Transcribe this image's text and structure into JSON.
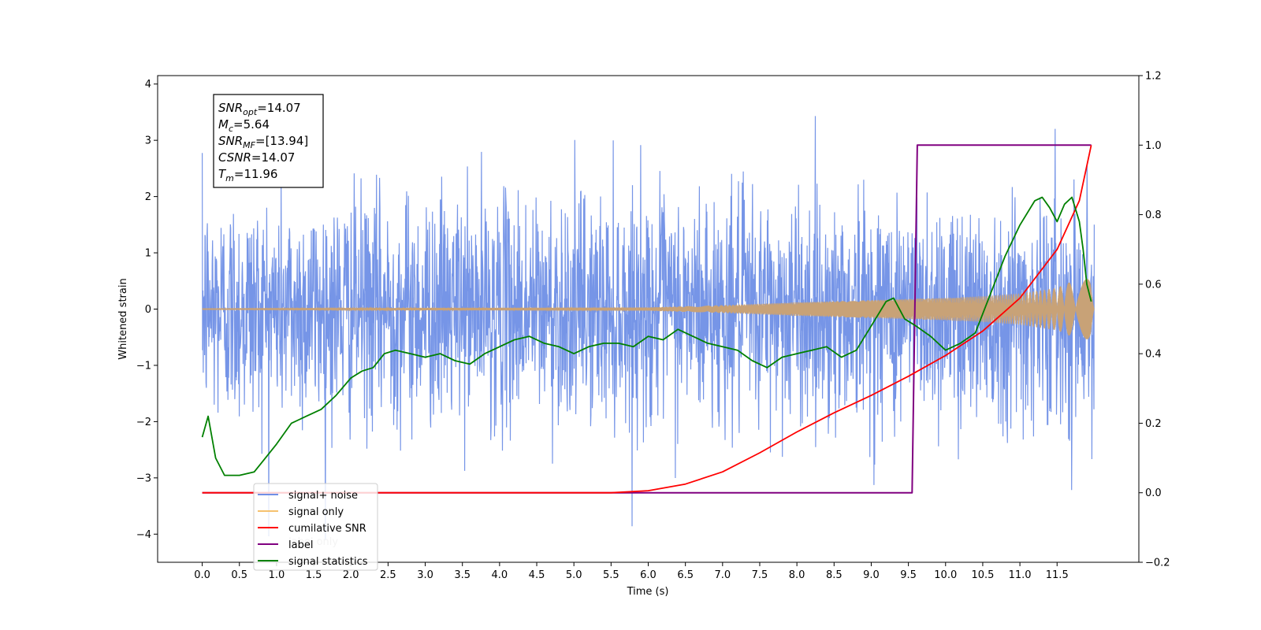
{
  "chart_data": {
    "type": "line",
    "xlabel": "Time (s)",
    "ylabel_left": "Whitened strain",
    "x_range": [
      -0.6,
      12.6
    ],
    "y_left_range": [
      -4.5,
      4.15
    ],
    "y_right_range": [
      -0.2,
      1.2
    ],
    "x_ticks": [
      0.0,
      0.5,
      1.0,
      1.5,
      2.0,
      2.5,
      3.0,
      3.5,
      4.0,
      4.5,
      5.0,
      5.5,
      6.0,
      6.5,
      7.0,
      7.5,
      8.0,
      8.5,
      9.0,
      9.5,
      10.0,
      10.5,
      11.0,
      11.5
    ],
    "x_tick_labels": [
      "0.0",
      "0.5",
      "1.0",
      "1.5",
      "2.0",
      "2.5",
      "3.0",
      "3.5",
      "4.0",
      "4.5",
      "5.0",
      "5.5",
      "6.0",
      "6.5",
      "7.0",
      "7.5",
      "8.0",
      "8.5",
      "9.0",
      "9.5",
      "10.0",
      "10.5",
      "11.0",
      "11.5"
    ],
    "y_left_ticks": [
      4,
      3,
      2,
      1,
      0,
      -1,
      -2,
      -3,
      -4
    ],
    "y_left_tick_labels": [
      "4",
      "3",
      "2",
      "1",
      "0",
      "−1",
      "−2",
      "−3",
      "−4"
    ],
    "y_right_ticks": [
      1.2,
      1.0,
      0.8,
      0.6,
      0.4,
      0.2,
      0.0,
      -0.2
    ],
    "y_right_tick_labels": [
      "1.2",
      "1.0",
      "0.8",
      "0.6",
      "0.4",
      "0.2",
      "0.0",
      "−0.2"
    ],
    "annotation": [
      {
        "name": "SNR",
        "sub": "opt",
        "value": "=14.07"
      },
      {
        "name": "M",
        "sub": "c",
        "value": "=5.64"
      },
      {
        "name": "SNR",
        "sub": "MF",
        "value": "=[13.94]"
      },
      {
        "name": "CSNR",
        "sub": "",
        "value": "=14.07"
      },
      {
        "name": "T",
        "sub": "m",
        "value": "=11.96"
      }
    ],
    "legend": {
      "placement": "lower-left",
      "entries": [
        {
          "label": "signal+ noise",
          "color": "#6f8fe6"
        },
        {
          "label": "signal only",
          "color": "#f5c16e"
        },
        {
          "label": "cumilative SNR",
          "color": "#ff0000"
        },
        {
          "label": "label",
          "color": "#800080"
        },
        {
          "label": "signal statistics",
          "color": "#008000"
        }
      ],
      "hidden_text": "label only"
    },
    "series": {
      "signal_noise": {
        "axis": "left",
        "color": "#6f8fe6",
        "t_start": 0.0,
        "t_end": 12.0,
        "typical_amplitude": 1.0,
        "max": 3.8,
        "min": -4.1
      },
      "signal_only": {
        "axis": "left",
        "color": "#c8a277",
        "t_start": 0.0,
        "t_end": 12.0,
        "envelope_t": [
          0,
          6.0,
          7.0,
          8.0,
          9.0,
          10.0,
          10.5,
          11.0,
          11.5,
          11.8,
          11.95,
          12.0
        ],
        "envelope_amp": [
          0.01,
          0.03,
          0.07,
          0.12,
          0.16,
          0.2,
          0.23,
          0.28,
          0.38,
          0.55,
          0.9,
          0.3
        ]
      },
      "cumulative_snr": {
        "axis": "right",
        "color": "#ff0000",
        "t": [
          0.0,
          5.5,
          6.0,
          6.5,
          7.0,
          7.5,
          8.0,
          8.5,
          9.0,
          9.5,
          10.0,
          10.5,
          11.0,
          11.5,
          11.8,
          11.96
        ],
        "values": [
          0.0,
          0.0,
          0.006,
          0.025,
          0.06,
          0.115,
          0.175,
          0.23,
          0.28,
          0.335,
          0.395,
          0.465,
          0.56,
          0.7,
          0.84,
          1.0
        ]
      },
      "label": {
        "axis": "right",
        "color": "#800080",
        "t": [
          0.0,
          9.55,
          9.62,
          11.96
        ],
        "values": [
          0.0,
          0.0,
          1.0,
          1.0
        ]
      },
      "signal_statistics": {
        "axis": "right",
        "color": "#008000",
        "t": [
          0.0,
          0.08,
          0.18,
          0.3,
          0.5,
          0.7,
          0.85,
          1.0,
          1.2,
          1.4,
          1.6,
          1.8,
          2.0,
          2.15,
          2.3,
          2.45,
          2.6,
          2.8,
          3.0,
          3.2,
          3.4,
          3.6,
          3.8,
          4.0,
          4.2,
          4.4,
          4.6,
          4.8,
          5.0,
          5.2,
          5.4,
          5.6,
          5.8,
          6.0,
          6.2,
          6.4,
          6.6,
          6.8,
          7.0,
          7.2,
          7.4,
          7.6,
          7.8,
          8.0,
          8.2,
          8.4,
          8.6,
          8.8,
          9.0,
          9.2,
          9.3,
          9.45,
          9.6,
          9.8,
          10.0,
          10.2,
          10.4,
          10.6,
          10.8,
          11.0,
          11.2,
          11.3,
          11.4,
          11.5,
          11.6,
          11.7,
          11.8,
          11.85,
          11.9,
          11.96
        ],
        "values": [
          0.16,
          0.22,
          0.1,
          0.05,
          0.05,
          0.06,
          0.1,
          0.14,
          0.2,
          0.22,
          0.24,
          0.28,
          0.33,
          0.35,
          0.36,
          0.4,
          0.41,
          0.4,
          0.39,
          0.4,
          0.38,
          0.37,
          0.4,
          0.42,
          0.44,
          0.45,
          0.43,
          0.42,
          0.4,
          0.42,
          0.43,
          0.43,
          0.42,
          0.45,
          0.44,
          0.47,
          0.45,
          0.43,
          0.42,
          0.41,
          0.38,
          0.36,
          0.39,
          0.4,
          0.41,
          0.42,
          0.39,
          0.41,
          0.48,
          0.55,
          0.56,
          0.5,
          0.48,
          0.45,
          0.41,
          0.43,
          0.46,
          0.57,
          0.68,
          0.77,
          0.84,
          0.85,
          0.82,
          0.78,
          0.83,
          0.85,
          0.78,
          0.7,
          0.6,
          0.55
        ]
      }
    }
  }
}
